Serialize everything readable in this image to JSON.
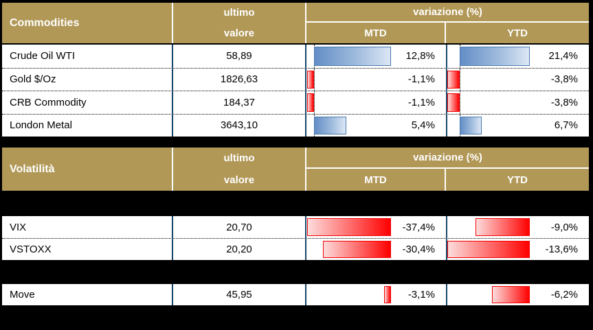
{
  "colors": {
    "background": "#000000",
    "header_gold": "#B19857",
    "header_text": "#FFFFFF",
    "column_border_navy": "#17476B",
    "positive_bar_color": "#638EC6",
    "positive_bar_border": "#4477AE",
    "negative_bar_color": "#FF0000",
    "negative_bar_border": "#F40000"
  },
  "tables": {
    "commodities": {
      "title": "Commodities",
      "header": {
        "value_line1": "ultimo",
        "value_line2": "valore",
        "variation": "variazione (%)",
        "mtd": "MTD",
        "ytd": "YTD"
      },
      "groups": [
        [
          {
            "label": "Crude Oil WTI",
            "value": "58,89",
            "mtd": {
              "v": 12.8,
              "text": "12,8%"
            },
            "ytd": {
              "v": 21.4,
              "text": "21,4%"
            }
          },
          {
            "label": "Gold $/Oz",
            "value": "1826,63",
            "mtd": {
              "v": -1.1,
              "text": "-1,1%"
            },
            "ytd": {
              "v": -3.8,
              "text": "-3,8%"
            }
          },
          {
            "label": "CRB Commodity",
            "value": "184,37",
            "mtd": {
              "v": -1.1,
              "text": "-1,1%"
            },
            "ytd": {
              "v": -3.8,
              "text": "-3,8%"
            }
          },
          {
            "label": "London Metal",
            "value": "3643,10",
            "mtd": {
              "v": 5.4,
              "text": "5,4%"
            },
            "ytd": {
              "v": 6.7,
              "text": "6,7%"
            }
          }
        ]
      ]
    },
    "volatility": {
      "title": "Volatilità",
      "header": {
        "value_line1": "ultimo",
        "value_line2": "valore",
        "variation": "variazione (%)",
        "mtd": "MTD",
        "ytd": "YTD"
      },
      "groups": [
        [
          {
            "label": "VIX",
            "value": "20,70",
            "mtd": {
              "v": -37.4,
              "text": "-37,4%"
            },
            "ytd": {
              "v": -9.0,
              "text": "-9,0%"
            }
          },
          {
            "label": "VSTOXX",
            "value": "20,20",
            "mtd": {
              "v": -30.4,
              "text": "-30,4%"
            },
            "ytd": {
              "v": -13.6,
              "text": "-13,6%"
            }
          }
        ],
        [
          {
            "label": "Move",
            "value": "45,95",
            "mtd": {
              "v": -3.1,
              "text": "-3,1%"
            },
            "ytd": {
              "v": -6.2,
              "text": "-6,2%"
            }
          }
        ]
      ]
    }
  },
  "chart_data": [
    {
      "type": "table",
      "title": "Commodities",
      "columns": [
        "Commodities",
        "ultimo valore",
        "variazione (%) MTD",
        "variazione (%) YTD"
      ],
      "rows": [
        [
          "Crude Oil WTI",
          58.89,
          12.8,
          21.4
        ],
        [
          "Gold $/Oz",
          1826.63,
          -1.1,
          -3.8
        ],
        [
          "CRB Commodity",
          184.37,
          -1.1,
          -3.8
        ],
        [
          "London Metal",
          3643.1,
          5.4,
          6.7
        ]
      ],
      "bar_columns": [
        "variazione (%) MTD",
        "variazione (%) YTD"
      ],
      "bar_style": "excel-gradient-data-bars",
      "positive_color": "#638EC6",
      "negative_color": "#FF0000",
      "number_format": "italian-decimal-comma"
    },
    {
      "type": "table",
      "title": "Volatilità",
      "columns": [
        "Volatilità",
        "ultimo valore",
        "variazione (%) MTD",
        "variazione (%) YTD"
      ],
      "rows": [
        [
          "VIX",
          20.7,
          -37.4,
          -9.0
        ],
        [
          "VSTOXX",
          20.2,
          -30.4,
          -13.6
        ],
        [
          "Move",
          45.95,
          -3.1,
          -6.2
        ]
      ],
      "bar_columns": [
        "variazione (%) MTD",
        "variazione (%) YTD"
      ],
      "bar_style": "excel-gradient-data-bars",
      "positive_color": "#638EC6",
      "negative_color": "#FF0000",
      "number_format": "italian-decimal-comma"
    }
  ]
}
